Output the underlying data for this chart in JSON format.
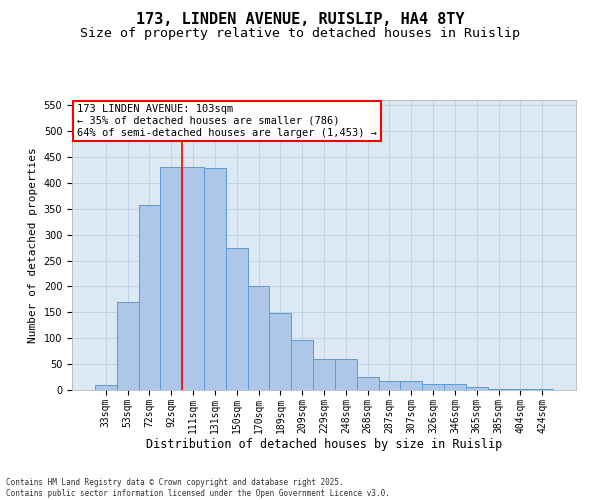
{
  "title": "173, LINDEN AVENUE, RUISLIP, HA4 8TY",
  "subtitle": "Size of property relative to detached houses in Ruislip",
  "xlabel": "Distribution of detached houses by size in Ruislip",
  "ylabel": "Number of detached properties",
  "categories": [
    "33sqm",
    "53sqm",
    "72sqm",
    "92sqm",
    "111sqm",
    "131sqm",
    "150sqm",
    "170sqm",
    "189sqm",
    "209sqm",
    "229sqm",
    "248sqm",
    "268sqm",
    "287sqm",
    "307sqm",
    "326sqm",
    "346sqm",
    "365sqm",
    "385sqm",
    "404sqm",
    "424sqm"
  ],
  "values": [
    10,
    170,
    357,
    430,
    430,
    428,
    275,
    200,
    148,
    97,
    60,
    60,
    25,
    17,
    17,
    11,
    11,
    6,
    2,
    1,
    2
  ],
  "bar_color": "#aec6e8",
  "bar_edge_color": "#5b9bd5",
  "grid_color": "#c0d4e8",
  "background_color": "#dce9f5",
  "vline_x_index": 4,
  "vline_color": "red",
  "annotation_line1": "173 LINDEN AVENUE: 103sqm",
  "annotation_line2": "← 35% of detached houses are smaller (786)",
  "annotation_line3": "64% of semi-detached houses are larger (1,453) →",
  "annotation_box_color": "white",
  "annotation_box_edge_color": "red",
  "ylim": [
    0,
    560
  ],
  "yticks": [
    0,
    50,
    100,
    150,
    200,
    250,
    300,
    350,
    400,
    450,
    500,
    550
  ],
  "footer_text": "Contains HM Land Registry data © Crown copyright and database right 2025.\nContains public sector information licensed under the Open Government Licence v3.0.",
  "title_fontsize": 11,
  "subtitle_fontsize": 9.5,
  "tick_fontsize": 7,
  "ylabel_fontsize": 8,
  "xlabel_fontsize": 8.5,
  "annotation_fontsize": 7.5,
  "footer_fontsize": 5.5
}
